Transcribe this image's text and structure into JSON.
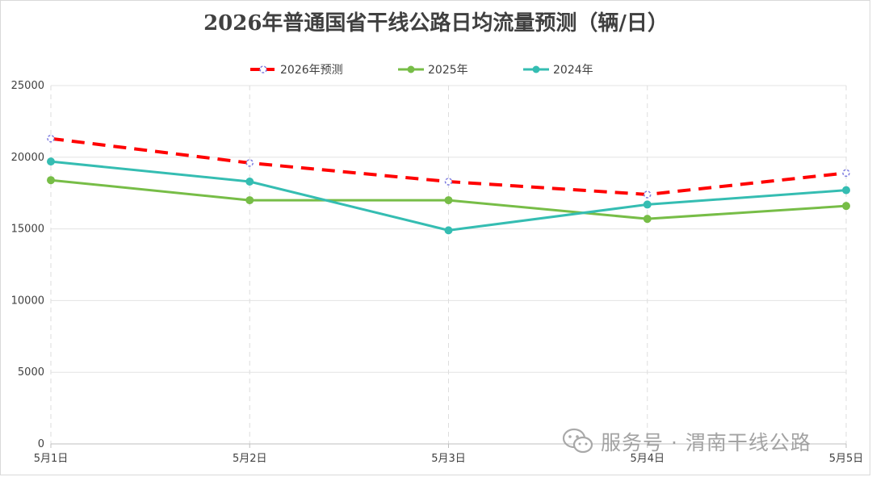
{
  "chart_data": {
    "type": "line",
    "title": "2026年普通国省干线公路日均流量预测（辆/日）",
    "xlabel": "",
    "ylabel": "",
    "categories": [
      "5月1日",
      "5月2日",
      "5月3日",
      "5月4日",
      "5月5日"
    ],
    "ylim": [
      0,
      25000
    ],
    "yticks": [
      0,
      5000,
      10000,
      15000,
      20000,
      25000
    ],
    "grid": true,
    "legend_position": "top-center",
    "series": [
      {
        "name": "2026年预测",
        "values": [
          21300,
          19600,
          18300,
          17400,
          18900
        ],
        "color": "#ff0000",
        "style": "dashed"
      },
      {
        "name": "2025年",
        "values": [
          18400,
          17000,
          17000,
          15700,
          16600
        ],
        "color": "#77bd47",
        "style": "solid"
      },
      {
        "name": "2024年",
        "values": [
          19700,
          18300,
          14900,
          16700,
          17700
        ],
        "color": "#35bdb2",
        "style": "solid"
      }
    ]
  },
  "watermark": {
    "text": "服务号 · 渭南干线公路",
    "icon": "wechat-icon"
  }
}
